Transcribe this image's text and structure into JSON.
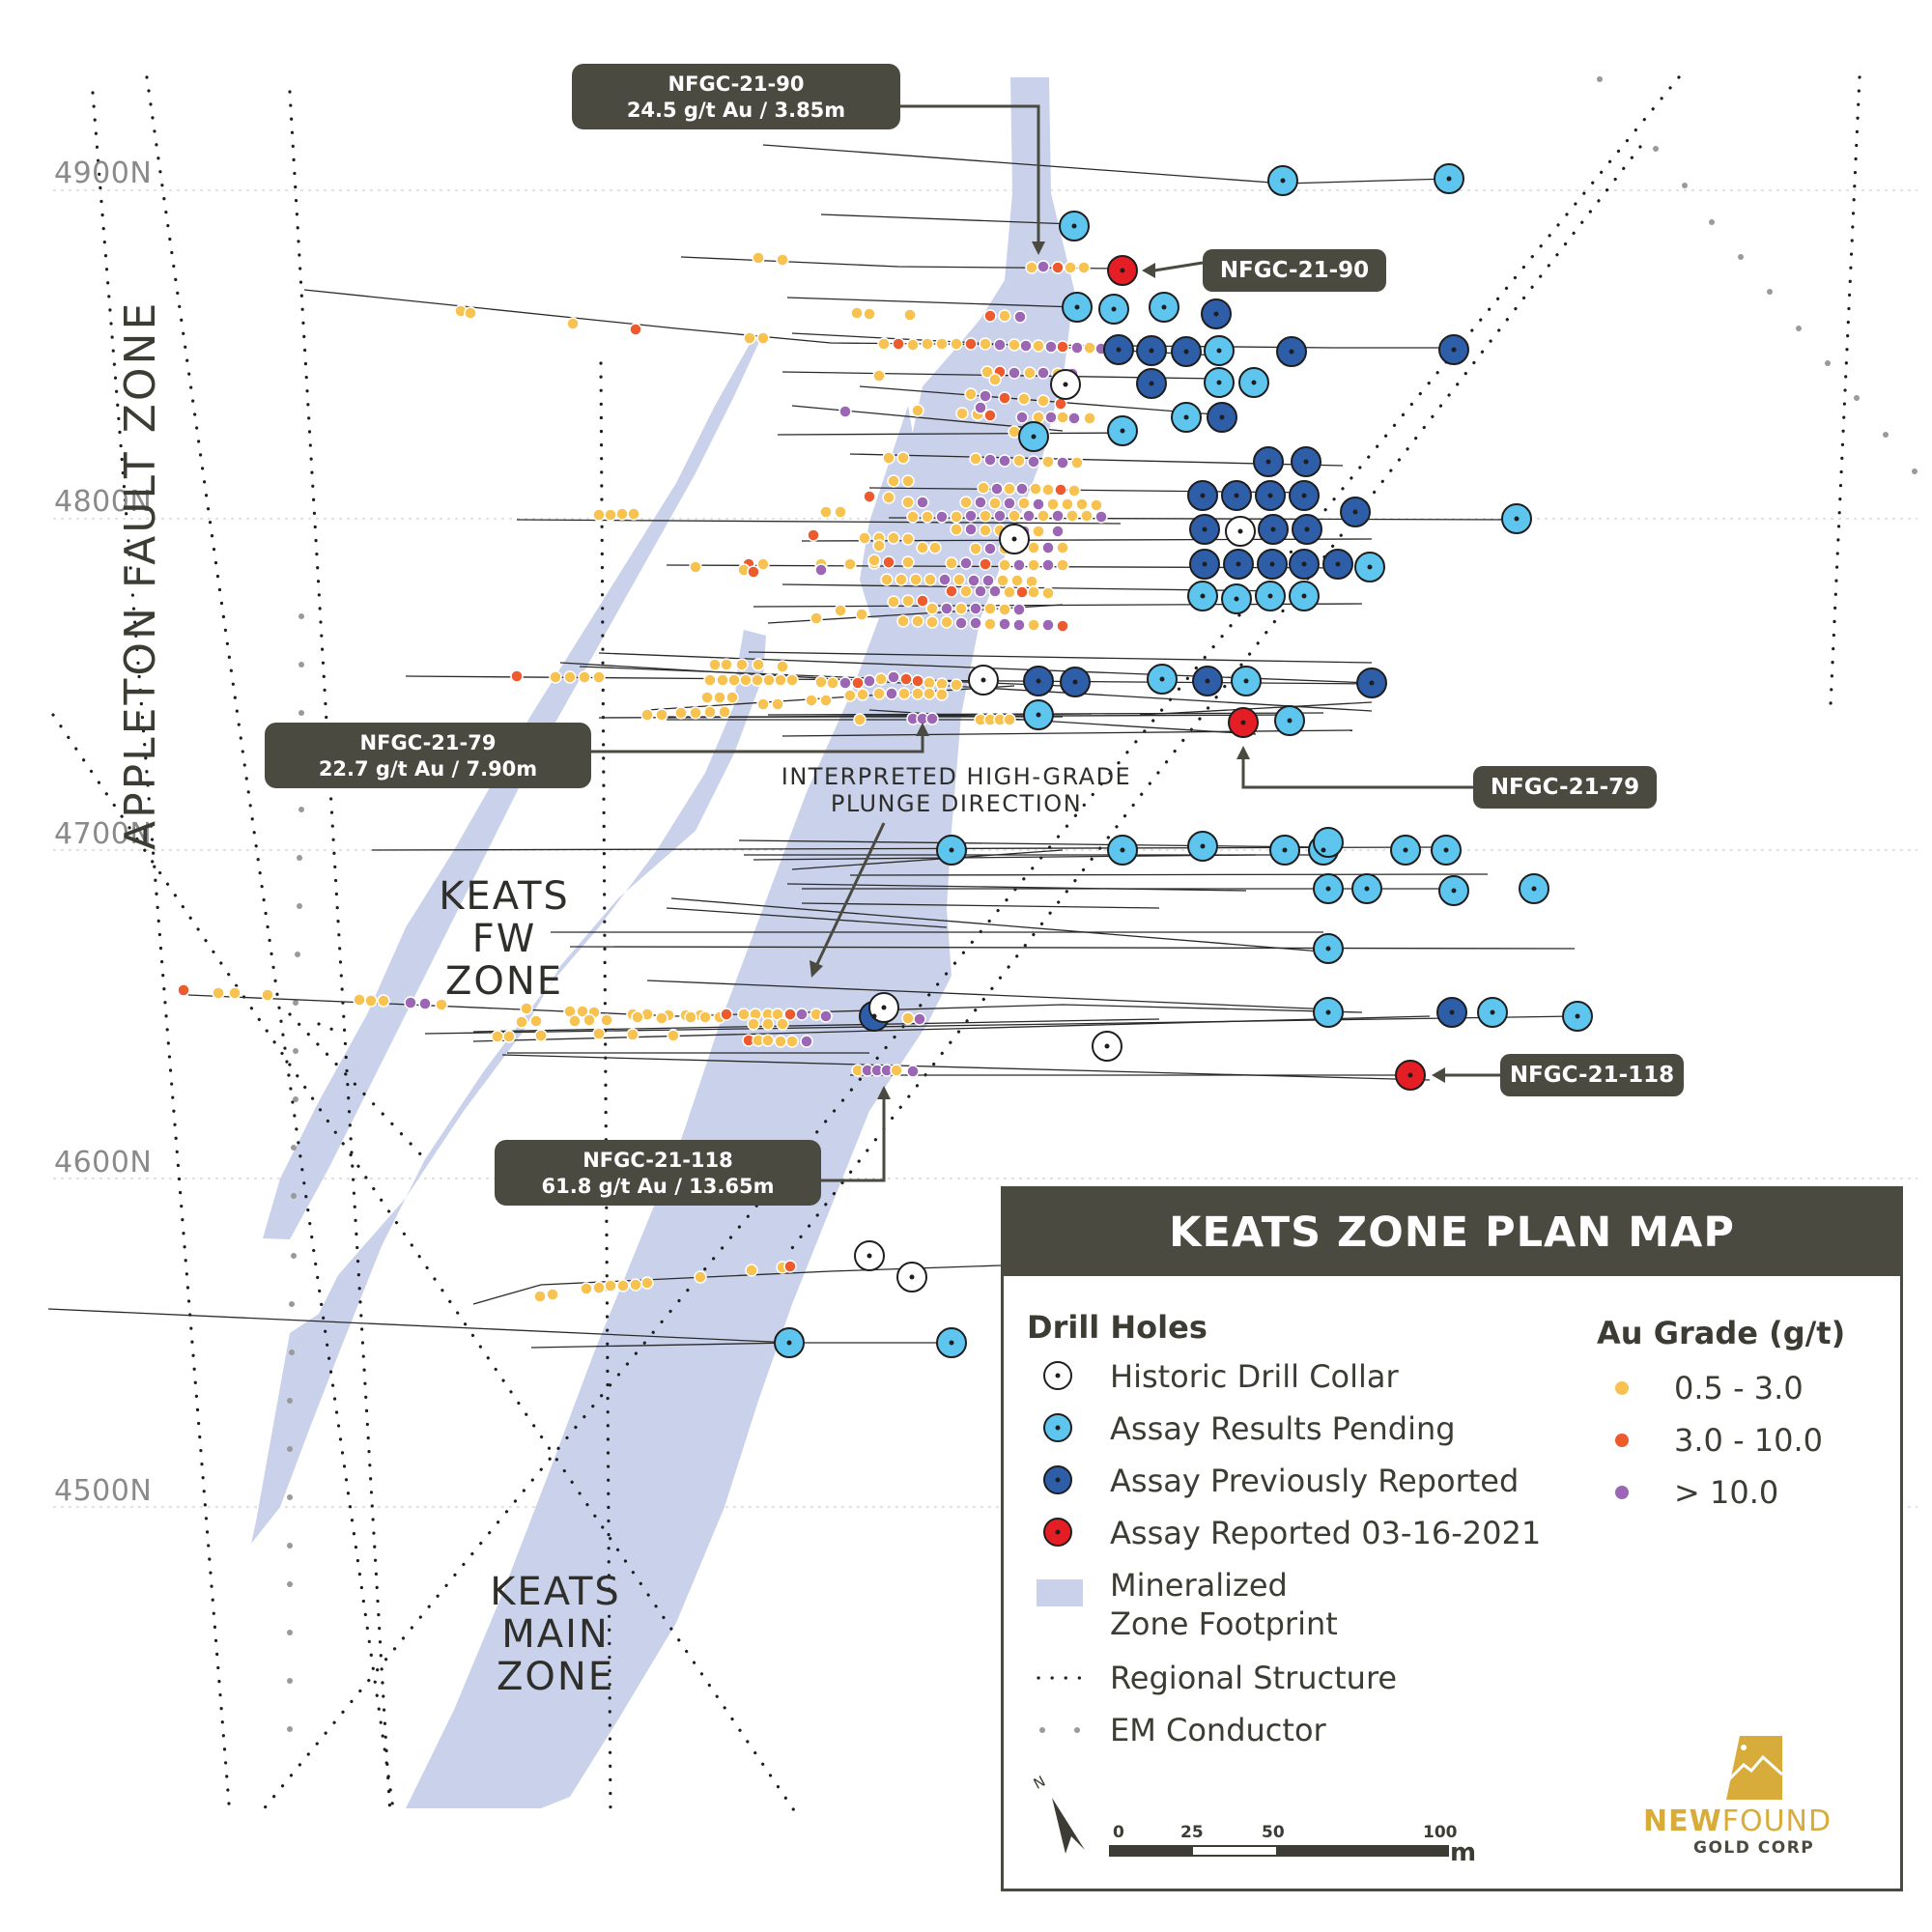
{
  "map": {
    "northing_labels": [
      "4900N",
      "4800N",
      "4700N",
      "4600N",
      "4500N"
    ],
    "fault_zone": "APPLETON FAULT ZONE",
    "zones": {
      "fw": [
        "KEATS",
        "FW",
        "ZONE"
      ],
      "main": [
        "KEATS",
        "MAIN",
        "ZONE"
      ]
    },
    "plunge": [
      "INTERPRETED HIGH-GRADE",
      "PLUNGE DIRECTION"
    ]
  },
  "callouts": {
    "c90": {
      "line1": "NFGC-21-90",
      "line2": "24.5 g/t Au / 3.85m"
    },
    "c79": {
      "line1": "NFGC-21-79",
      "line2": "22.7 g/t Au / 7.90m"
    },
    "c118": {
      "line1": "NFGC-21-118",
      "line2": "61.8 g/t Au / 13.65m"
    }
  },
  "tags": {
    "t90": "NFGC-21-90",
    "t79": "NFGC-21-79",
    "t118": "NFGC-21-118"
  },
  "legend": {
    "title": "KEATS ZONE PLAN MAP",
    "drill_holes_heading": "Drill Holes",
    "items": [
      {
        "label": "Historic Drill Collar",
        "color": "#ffffff"
      },
      {
        "label": "Assay Results Pending",
        "color": "#5ec6ee"
      },
      {
        "label": "Assay Previously Reported",
        "color": "#2f5ea8"
      },
      {
        "label": "Assay Reported 03-16-2021",
        "color": "#e51e25"
      }
    ],
    "footprint": [
      "Mineralized",
      "Zone Footprint"
    ],
    "regional_structure": "Regional Structure",
    "em_conductor": "EM Conductor",
    "grade_heading": "Au Grade (g/t)",
    "grades": [
      {
        "label": "0.5 - 3.0",
        "color": "#f7c24f"
      },
      {
        "label": "3.0 - 10.0",
        "color": "#ec5a2d"
      },
      {
        "label": "> 10.0",
        "color": "#9b67b5"
      }
    ],
    "scale": {
      "ticks": [
        "0",
        "25",
        "50",
        "100"
      ],
      "unit": "m"
    },
    "logo": {
      "name_bold": "NEW",
      "name_light": "FOUND",
      "sub": "GOLD CORP"
    }
  },
  "colors": {
    "footprint": "#c9d2ea",
    "pending": "#5ec6ee",
    "previous": "#2f5ea8",
    "reported": "#e51e25",
    "label_bg": "#4b4a40"
  }
}
